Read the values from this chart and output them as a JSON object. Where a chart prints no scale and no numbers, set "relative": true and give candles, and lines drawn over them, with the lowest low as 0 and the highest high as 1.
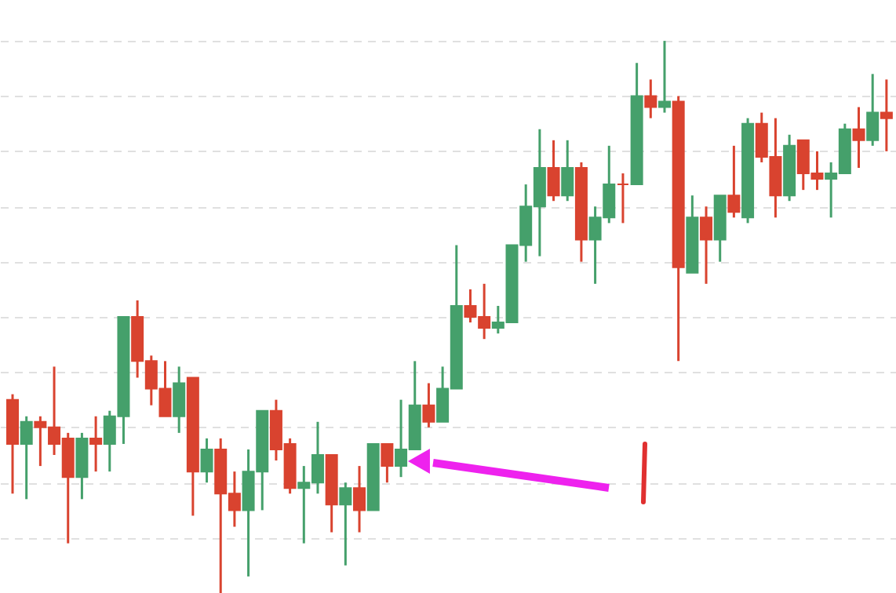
{
  "chart_data": {
    "type": "candlestick",
    "relative": true,
    "grid": "y",
    "categories": [
      null,
      null,
      null,
      null,
      null,
      null,
      null,
      null,
      null,
      null,
      null,
      null,
      null,
      null,
      null,
      null,
      null,
      null,
      null,
      null,
      null,
      null,
      null,
      null,
      null,
      null,
      null,
      null,
      null,
      null,
      null,
      null,
      null,
      null,
      null,
      null,
      null,
      null,
      null,
      null,
      null,
      null,
      null,
      null,
      null,
      null,
      null,
      null,
      null,
      null,
      null,
      null,
      null,
      null,
      null,
      null,
      null,
      null,
      null,
      null,
      null,
      null,
      null,
      null
    ],
    "ohlc": [
      [
        0.35,
        0.36,
        0.18,
        0.27
      ],
      [
        0.27,
        0.32,
        0.17,
        0.31
      ],
      [
        0.31,
        0.32,
        0.23,
        0.3
      ],
      [
        0.3,
        0.41,
        0.25,
        0.27
      ],
      [
        0.28,
        0.29,
        0.09,
        0.21
      ],
      [
        0.21,
        0.29,
        0.17,
        0.28
      ],
      [
        0.28,
        0.32,
        0.22,
        0.27
      ],
      [
        0.27,
        0.33,
        0.22,
        0.32
      ],
      [
        0.32,
        0.5,
        0.27,
        0.5
      ],
      [
        0.5,
        0.53,
        0.39,
        0.42
      ],
      [
        0.42,
        0.43,
        0.34,
        0.37
      ],
      [
        0.37,
        0.42,
        0.32,
        0.32
      ],
      [
        0.32,
        0.41,
        0.29,
        0.38
      ],
      [
        0.39,
        0.39,
        0.14,
        0.22
      ],
      [
        0.22,
        0.28,
        0.2,
        0.26
      ],
      [
        0.26,
        0.28,
        0,
        0.18
      ],
      [
        0.18,
        0.22,
        0.12,
        0.15
      ],
      [
        0.15,
        0.26,
        0.03,
        0.22
      ],
      [
        0.22,
        0.33,
        0.15,
        0.33
      ],
      [
        0.33,
        0.35,
        0.24,
        0.26
      ],
      [
        0.27,
        0.28,
        0.18,
        0.19
      ],
      [
        0.19,
        0.23,
        0.09,
        0.2
      ],
      [
        0.2,
        0.31,
        0.18,
        0.25
      ],
      [
        0.25,
        0.25,
        0.11,
        0.16
      ],
      [
        0.16,
        0.2,
        0.05,
        0.19
      ],
      [
        0.19,
        0.23,
        0.11,
        0.15
      ],
      [
        0.15,
        0.27,
        0.15,
        0.27
      ],
      [
        0.27,
        0.27,
        0.2,
        0.23
      ],
      [
        0.23,
        0.35,
        0.21,
        0.26
      ],
      [
        0.26,
        0.42,
        0.26,
        0.34
      ],
      [
        0.34,
        0.38,
        0.3,
        0.31
      ],
      [
        0.31,
        0.41,
        0.31,
        0.37
      ],
      [
        0.37,
        0.63,
        0.37,
        0.52
      ],
      [
        0.52,
        0.55,
        0.49,
        0.5
      ],
      [
        0.5,
        0.56,
        0.46,
        0.48
      ],
      [
        0.48,
        0.52,
        0.47,
        0.49
      ],
      [
        0.49,
        0.63,
        0.49,
        0.63
      ],
      [
        0.63,
        0.74,
        0.6,
        0.7
      ],
      [
        0.7,
        0.84,
        0.61,
        0.77
      ],
      [
        0.77,
        0.82,
        0.71,
        0.72
      ],
      [
        0.72,
        0.82,
        0.71,
        0.77
      ],
      [
        0.77,
        0.78,
        0.6,
        0.64
      ],
      [
        0.64,
        0.7,
        0.56,
        0.68
      ],
      [
        0.68,
        0.81,
        0.67,
        0.74
      ],
      [
        0.74,
        0.76,
        0.67,
        0.74
      ],
      [
        0.74,
        0.96,
        0.74,
        0.9
      ],
      [
        0.9,
        0.93,
        0.86,
        0.88
      ],
      [
        0.88,
        1,
        0.87,
        0.89
      ],
      [
        0.89,
        0.9,
        0.42,
        0.59
      ],
      [
        0.58,
        0.72,
        0.58,
        0.68
      ],
      [
        0.68,
        0.7,
        0.56,
        0.64
      ],
      [
        0.64,
        0.72,
        0.6,
        0.72
      ],
      [
        0.72,
        0.81,
        0.68,
        0.69
      ],
      [
        0.68,
        0.86,
        0.67,
        0.85
      ],
      [
        0.85,
        0.87,
        0.78,
        0.79
      ],
      [
        0.79,
        0.86,
        0.68,
        0.72
      ],
      [
        0.72,
        0.83,
        0.71,
        0.81
      ],
      [
        0.82,
        0.82,
        0.73,
        0.76
      ],
      [
        0.76,
        0.8,
        0.73,
        0.75
      ],
      [
        0.75,
        0.78,
        0.68,
        0.76
      ],
      [
        0.76,
        0.85,
        0.76,
        0.84
      ],
      [
        0.84,
        0.88,
        0.77,
        0.82
      ],
      [
        0.82,
        0.94,
        0.81,
        0.87
      ],
      [
        0.87,
        0.93,
        0.8,
        0.86
      ]
    ],
    "colors": [
      "#d9432f",
      "#45a06b",
      "#d9432f",
      "#d9432f",
      "#d9432f",
      "#45a06b",
      "#d9432f",
      "#45a06b",
      "#45a06b",
      "#d9432f",
      "#d9432f",
      "#d9432f",
      "#45a06b",
      "#d9432f",
      "#45a06b",
      "#d9432f",
      "#d9432f",
      "#45a06b",
      "#45a06b",
      "#d9432f",
      "#d9432f",
      "#45a06b",
      "#45a06b",
      "#d9432f",
      "#45a06b",
      "#d9432f",
      "#45a06b",
      "#d9432f",
      "#45a06b",
      "#45a06b",
      "#d9432f",
      "#45a06b",
      "#45a06b",
      "#d9432f",
      "#d9432f",
      "#45a06b",
      "#45a06b",
      "#45a06b",
      "#45a06b",
      "#d9432f",
      "#45a06b",
      "#d9432f",
      "#45a06b",
      "#45a06b",
      "#d9432f",
      "#45a06b",
      "#d9432f",
      "#45a06b",
      "#d9432f",
      "#45a06b",
      "#d9432f",
      "#45a06b",
      "#d9432f",
      "#45a06b",
      "#d9432f",
      "#d9432f",
      "#45a06b",
      "#d9432f",
      "#d9432f",
      "#45a06b",
      "#45a06b",
      "#d9432f",
      "#45a06b",
      "#d9432f"
    ]
  }
}
